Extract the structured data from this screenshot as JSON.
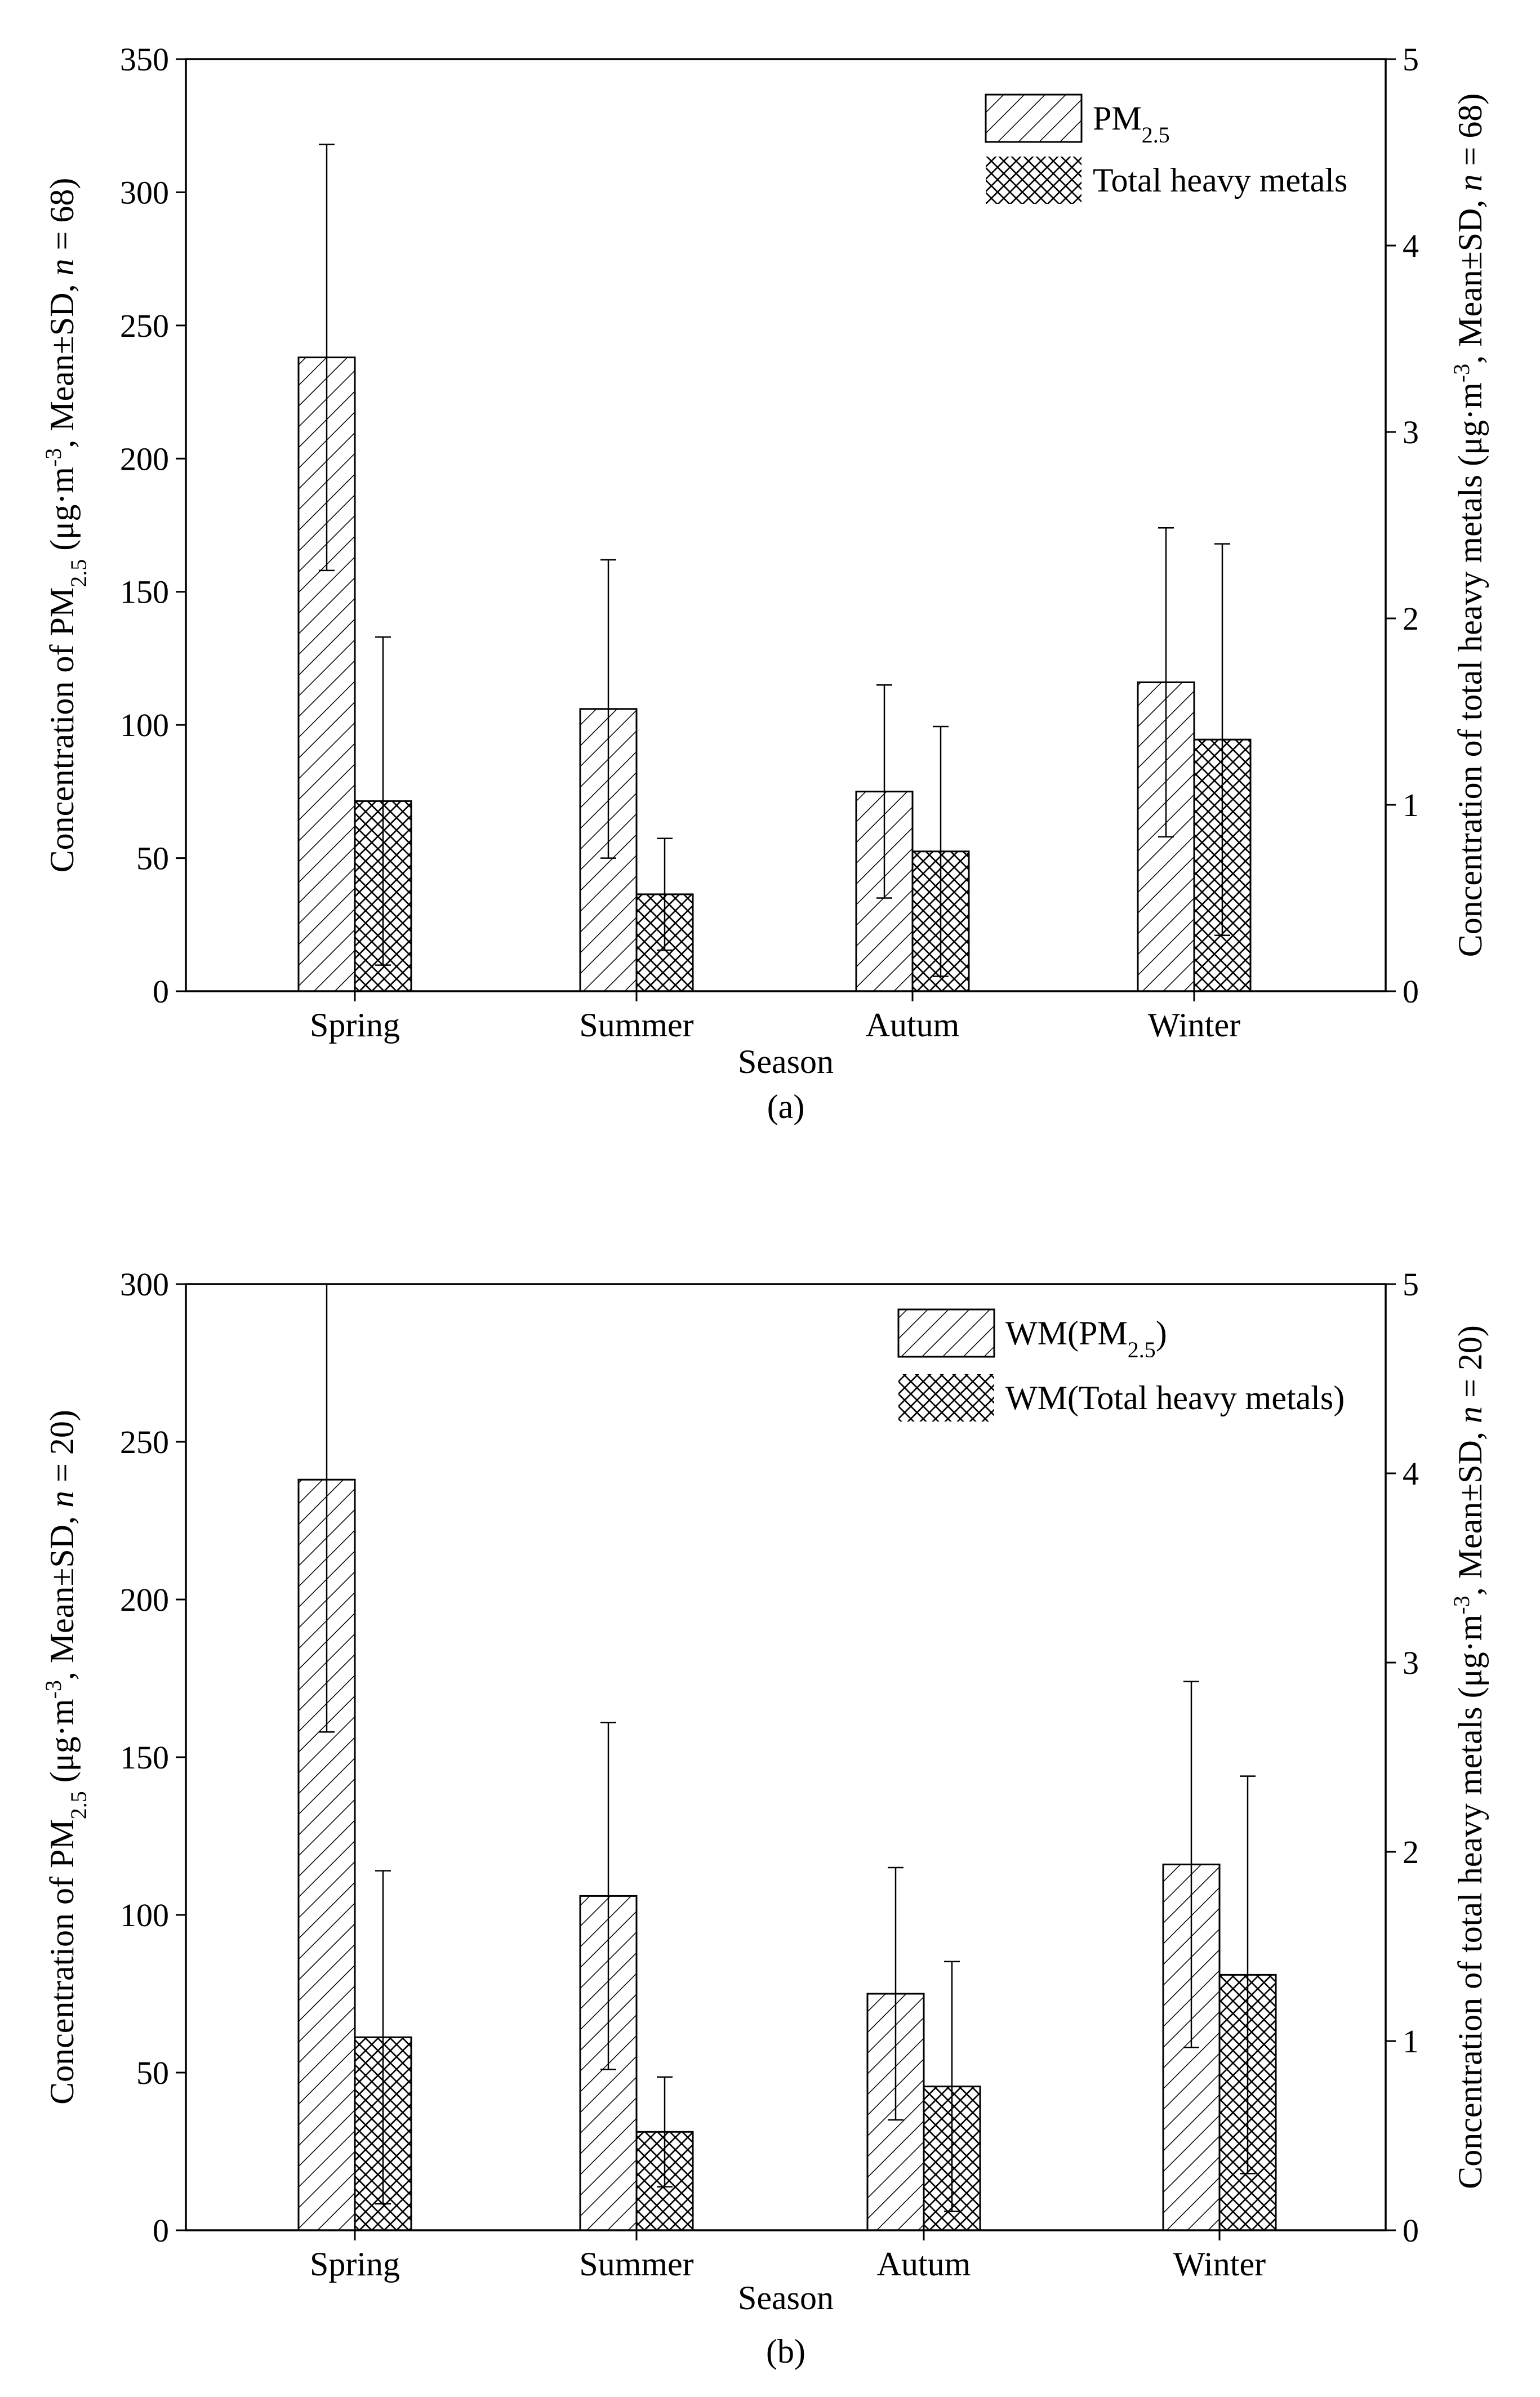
{
  "chart_data": [
    {
      "type": "bar",
      "panel_label": "(a)",
      "title": "",
      "xlabel": "Season",
      "categories": [
        "Spring",
        "Summer",
        "Autum",
        "Winter"
      ],
      "y_left": {
        "label_main": "Concentration of PM",
        "label_sub": "2.5",
        "label_mid": " (μg·m",
        "label_sup": "-3",
        "label_tail1": ", Mean±SD, ",
        "label_n": "n",
        "label_tail2": " = 68)",
        "ylim": [
          0,
          350
        ],
        "ticks": [
          "0",
          "50",
          "100",
          "150",
          "200",
          "250",
          "300",
          "350"
        ]
      },
      "y_right": {
        "label_main": "Concentration of total heavy metals (μg·m",
        "label_sup": "-3",
        "label_tail1": ", Mean±SD, ",
        "label_n": "n",
        "label_tail2": " = 68)",
        "ylim": [
          0,
          5
        ],
        "ticks": [
          "0",
          "1",
          "2",
          "3",
          "4",
          "5"
        ]
      },
      "legend": [
        {
          "text": "PM",
          "sub": "2.5",
          "suffix": "",
          "pattern": "hatch"
        },
        {
          "text": "Total heavy metals",
          "sub": "",
          "suffix": "",
          "pattern": "cross"
        }
      ],
      "series": [
        {
          "name": "PM2.5",
          "axis": "left",
          "pattern": "hatch",
          "values": [
            238,
            106,
            75,
            116
          ],
          "errors": [
            80,
            56,
            40,
            58
          ]
        },
        {
          "name": "Total heavy metals",
          "axis": "right",
          "pattern": "cross",
          "values": [
            1.02,
            0.52,
            0.75,
            1.35
          ],
          "errors": [
            0.88,
            0.3,
            0.67,
            1.05
          ]
        }
      ]
    },
    {
      "type": "bar",
      "panel_label": "(b)",
      "title": "",
      "xlabel": "Season",
      "categories": [
        "Spring",
        "Summer",
        "Autum",
        "Winter"
      ],
      "y_left": {
        "label_main": "Concentration of PM",
        "label_sub": "2.5",
        "label_mid": " (μg·m",
        "label_sup": "-3",
        "label_tail1": ", Mean±SD, ",
        "label_n": "n",
        "label_tail2": " = 20)",
        "ylim": [
          0,
          300
        ],
        "ticks": [
          "0",
          "50",
          "100",
          "150",
          "200",
          "250",
          "300"
        ]
      },
      "y_right": {
        "label_main": "Concentration of total heavy metals (μg·m",
        "label_sup": "-3",
        "label_tail1": ", Mean±SD, ",
        "label_n": "n",
        "label_tail2": " = 20)",
        "ylim": [
          0,
          5
        ],
        "ticks": [
          "0",
          "1",
          "2",
          "3",
          "4",
          "5"
        ]
      },
      "legend": [
        {
          "text": "WM(PM",
          "sub": "2.5",
          "suffix": ")",
          "pattern": "hatch"
        },
        {
          "text": "WM(Total heavy metals)",
          "sub": "",
          "suffix": "",
          "pattern": "cross"
        }
      ],
      "series": [
        {
          "name": "WM(PM2.5)",
          "axis": "left",
          "pattern": "hatch",
          "values": [
            238,
            106,
            75,
            116
          ],
          "errors": [
            80,
            55,
            40,
            58
          ]
        },
        {
          "name": "WM(Total heavy metals)",
          "axis": "right",
          "pattern": "cross",
          "values": [
            1.02,
            0.52,
            0.76,
            1.35
          ],
          "errors": [
            0.88,
            0.29,
            0.66,
            1.05
          ]
        }
      ]
    }
  ]
}
